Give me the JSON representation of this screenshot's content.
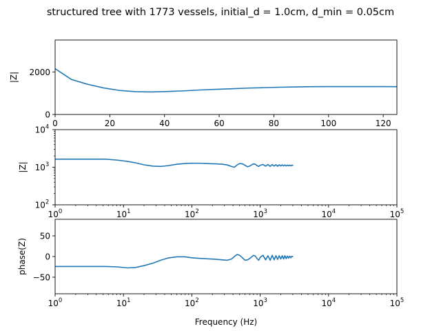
{
  "figure": {
    "suptitle": "structured tree with 1773 vessels, initial_d = 1.0cm, d_min = 0.05cm",
    "series_color": "#1f77b4"
  },
  "chart_data": [
    {
      "type": "line",
      "id": "magnitude-linear",
      "ylabel": "|Z|",
      "xlabel": "",
      "xscale": "linear",
      "yscale": "linear",
      "xlim": [
        0,
        125
      ],
      "ylim": [
        0,
        3500
      ],
      "xticks": [
        0,
        20,
        40,
        60,
        80,
        100,
        120
      ],
      "xtick_labels": [
        "0",
        "20",
        "40",
        "60",
        "80",
        "100",
        "120"
      ],
      "yticks": [
        0,
        2000
      ],
      "ytick_labels": [
        "0",
        "2000"
      ],
      "series": [
        {
          "x": [
            0,
            5.9,
            11.8,
            17.6,
            23.5,
            29.4,
            35.3,
            41.2,
            47.1,
            52.9,
            58.8,
            64.7,
            70.6,
            76.5,
            82.4,
            88.2,
            94.1,
            100,
            105.9,
            111.8,
            117.6,
            125
          ],
          "y": [
            2150,
            1650,
            1420,
            1250,
            1130,
            1070,
            1060,
            1080,
            1110,
            1150,
            1180,
            1210,
            1240,
            1260,
            1280,
            1295,
            1305,
            1310,
            1312,
            1312,
            1310,
            1305
          ]
        }
      ]
    },
    {
      "type": "line",
      "id": "magnitude-log",
      "ylabel": "|Z|",
      "xlabel": "",
      "xscale": "log",
      "yscale": "log",
      "xlim": [
        1,
        100000
      ],
      "ylim": [
        100,
        10000
      ],
      "xtick_labels": [
        {
          "base": "10",
          "exp": "0"
        },
        {
          "base": "10",
          "exp": "1"
        },
        {
          "base": "10",
          "exp": "2"
        },
        {
          "base": "10",
          "exp": "3"
        },
        {
          "base": "10",
          "exp": "4"
        },
        {
          "base": "10",
          "exp": "5"
        }
      ],
      "ytick_labels": [
        {
          "base": "10",
          "exp": "2"
        },
        {
          "base": "10",
          "exp": "3"
        },
        {
          "base": "10",
          "exp": "4"
        }
      ],
      "series": [
        {
          "x": [
            1,
            5.5,
            8,
            11.5,
            15,
            20,
            27,
            35,
            45,
            60,
            80,
            100,
            130,
            170,
            220,
            280,
            330,
            380,
            420,
            460,
            500,
            550,
            600,
            650,
            700,
            750,
            800,
            850,
            900,
            950,
            1000,
            1100,
            1200,
            1300,
            1400,
            1500,
            1600,
            1700,
            1800,
            1900,
            2000,
            2100,
            2200,
            2300,
            2400,
            2500,
            2600,
            2700,
            2800,
            2900,
            3000
          ],
          "y": [
            1640,
            1640,
            1550,
            1430,
            1310,
            1160,
            1070,
            1050,
            1100,
            1200,
            1260,
            1280,
            1275,
            1250,
            1230,
            1200,
            1150,
            1050,
            1000,
            1150,
            1250,
            1230,
            1130,
            1030,
            1070,
            1160,
            1230,
            1200,
            1100,
            1050,
            1130,
            1180,
            1070,
            1180,
            1050,
            1180,
            1070,
            1170,
            1060,
            1160,
            1080,
            1160,
            1080,
            1150,
            1080,
            1140,
            1090,
            1140,
            1090,
            1130,
            1120
          ]
        }
      ]
    },
    {
      "type": "line",
      "id": "phase-log",
      "ylabel": "phase(Z)",
      "xlabel": "Frequency (Hz)",
      "xscale": "log",
      "yscale": "linear",
      "xlim": [
        1,
        100000
      ],
      "ylim": [
        -90,
        90
      ],
      "yticks": [
        -50,
        0,
        50
      ],
      "ytick_labels": [
        "−50",
        "0",
        "50"
      ],
      "xtick_labels": [
        {
          "base": "10",
          "exp": "0"
        },
        {
          "base": "10",
          "exp": "1"
        },
        {
          "base": "10",
          "exp": "2"
        },
        {
          "base": "10",
          "exp": "3"
        },
        {
          "base": "10",
          "exp": "4"
        },
        {
          "base": "10",
          "exp": "5"
        }
      ],
      "series": [
        {
          "x": [
            1,
            5.5,
            8,
            11.5,
            15,
            20,
            27,
            35,
            45,
            60,
            80,
            100,
            130,
            170,
            220,
            280,
            330,
            380,
            420,
            460,
            500,
            550,
            600,
            650,
            700,
            750,
            800,
            850,
            900,
            950,
            1000,
            1100,
            1200,
            1300,
            1400,
            1500,
            1600,
            1700,
            1800,
            1900,
            2000,
            2100,
            2200,
            2300,
            2400,
            2500,
            2600,
            2700,
            2800,
            2900,
            3000
          ],
          "y": [
            -24,
            -24,
            -25,
            -27.5,
            -26.5,
            -22,
            -16,
            -9,
            -3.5,
            -0.8,
            -0.7,
            -3,
            -4.5,
            -5.5,
            -6.5,
            -8,
            -9,
            -6,
            0,
            5,
            3,
            -3,
            -9,
            -8,
            -5,
            -1,
            3,
            1,
            -5,
            -9,
            -2,
            3,
            -8,
            2,
            -9,
            3,
            -8,
            2,
            -7,
            2,
            -6,
            2,
            -6,
            2,
            -5,
            1,
            -4,
            1,
            -3,
            0.5,
            0
          ]
        }
      ]
    }
  ]
}
